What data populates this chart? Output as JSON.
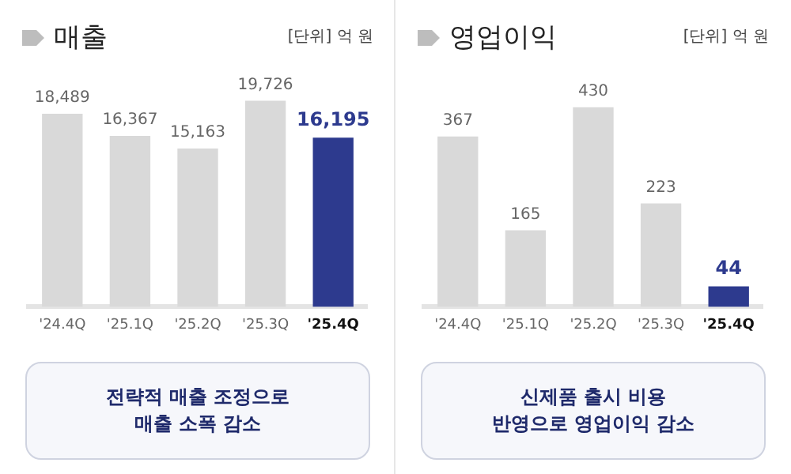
{
  "chart_data": [
    {
      "type": "bar",
      "title": "매출",
      "subtitle": "[단위] 억 원",
      "categories": [
        "'24.4Q",
        "'25.1Q",
        "'25.2Q",
        "'25.3Q",
        "'25.4Q"
      ],
      "values": [
        18489,
        16367,
        15163,
        19726,
        16195
      ],
      "value_labels": [
        "18,489",
        "16,367",
        "15,163",
        "19,726",
        "16,195"
      ],
      "colors": [
        "#d9d9d9",
        "#d9d9d9",
        "#d9d9d9",
        "#d9d9d9",
        "#2d3a8e"
      ],
      "tick_labels": "x",
      "grid": false,
      "legend": false,
      "annotations": [
        "전략적 매출 조정으로\n매출 소폭 감소"
      ]
    },
    {
      "type": "bar",
      "title": "영업이익",
      "subtitle": "[단위] 억 원",
      "categories": [
        "'24.4Q",
        "'25.1Q",
        "'25.2Q",
        "'25.3Q",
        "'25.4Q"
      ],
      "values": [
        367,
        165,
        430,
        223,
        44
      ],
      "data_labels": true,
      "colors": [
        "#d9d9d9",
        "#d9d9d9",
        "#d9d9d9",
        "#d9d9d9",
        "#2d3a8e"
      ],
      "tick_labels": "x",
      "grid": false,
      "legend": false,
      "annotations": [
        "신제품 출시 비용\n반영으로 영업이익 감소"
      ]
    }
  ]
}
